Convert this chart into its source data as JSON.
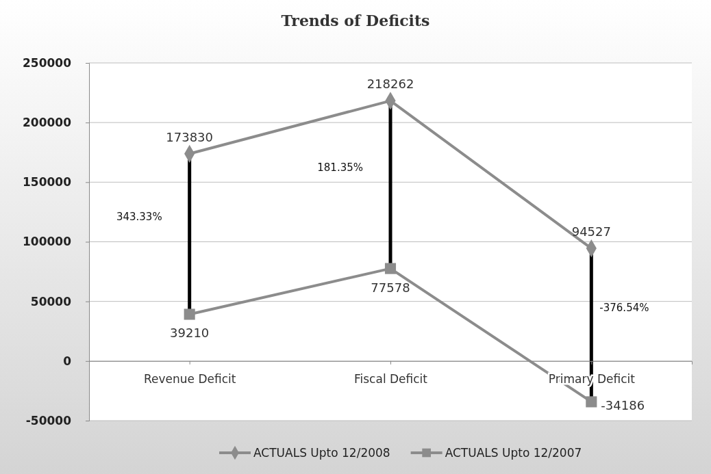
{
  "chart_data": {
    "type": "line",
    "title": "Trends of Deficits",
    "categories": [
      "Revenue Deficit",
      "Fiscal Deficit",
      "Primary Deficit"
    ],
    "series": [
      {
        "name": "ACTUALS Upto 12/2008",
        "color": "#8c8c8c",
        "marker": "diamond",
        "values": [
          173830,
          218262,
          94527
        ]
      },
      {
        "name": "ACTUALS Upto 12/2007",
        "color": "#8c8c8c",
        "marker": "square",
        "values": [
          39210,
          77578,
          -34186
        ]
      }
    ],
    "ylim": [
      -50000,
      250000
    ],
    "yticks": [
      -50000,
      0,
      50000,
      100000,
      150000,
      200000,
      250000
    ],
    "grid": "y",
    "legend": "bottom",
    "data_labels": true,
    "line_style": "solid",
    "annotations": [
      "343.33%",
      "181.35%",
      "-376.54%"
    ]
  }
}
